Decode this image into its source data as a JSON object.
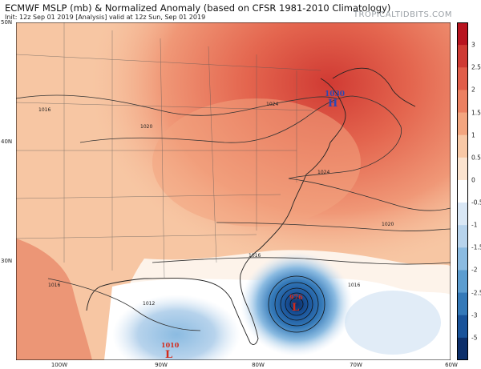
{
  "header": {
    "title": "ECMWF MSLP (mb) & Normalized Anomaly (based on CFSR 1981-2010 Climatology)",
    "subtitle": "Init: 12z Sep 01 2019   [Analysis]   valid at 12z Sun, Sep 01 2019",
    "site": "TROPICALTIDBITS.COM"
  },
  "axes": {
    "lat_labels": [
      "50N",
      "40N",
      "30N"
    ],
    "lon_labels": [
      "100W",
      "90W",
      "80W",
      "70W",
      "60W"
    ]
  },
  "colorbar": {
    "labels": [
      "3",
      "2.5",
      "2",
      "1.5",
      "1",
      "0.5",
      "0",
      "-0.5",
      "-1",
      "-1.5",
      "-2",
      "-2.5",
      "-3",
      "-5"
    ],
    "colors": [
      "#b8141f",
      "#cf3a33",
      "#e15d49",
      "#ec8061",
      "#f3a57f",
      "#f8c8a6",
      "#fbe3cf",
      "#ffffff",
      "#d9e7f5",
      "#b7d3ec",
      "#8bbbe1",
      "#5c9dd0",
      "#3479b8",
      "#19539a",
      "#0c2f6b"
    ]
  },
  "pressure_systems": [
    {
      "type": "H",
      "value": "1030",
      "color": "#2c48b4"
    },
    {
      "type": "L",
      "value": "976",
      "color": "#d42a1a"
    },
    {
      "type": "L",
      "value": "1010",
      "color": "#d42a1a"
    }
  ],
  "isobar_labels": [
    "1016",
    "1020",
    "1024",
    "1024",
    "1020",
    "1016",
    "1016",
    "1012",
    "1016"
  ]
}
